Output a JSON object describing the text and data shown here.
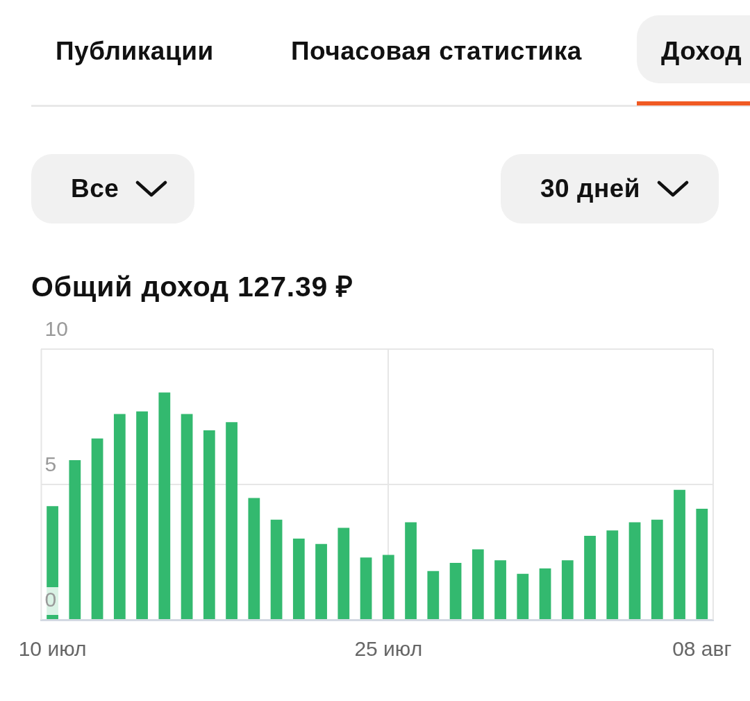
{
  "chart_data": {
    "type": "bar",
    "title": "Общий доход 127.39 ₽",
    "annotations": [
      "Публикации",
      "Почасовая статистика",
      "Доход",
      "Все",
      "30 дней"
    ],
    "categories": [
      "10 июл",
      null,
      null,
      null,
      null,
      null,
      null,
      null,
      null,
      null,
      null,
      null,
      null,
      null,
      null,
      "25 июл",
      null,
      null,
      null,
      null,
      null,
      null,
      null,
      null,
      null,
      null,
      null,
      null,
      null,
      "08 авг"
    ],
    "values": [
      4.2,
      5.9,
      6.7,
      7.6,
      7.7,
      8.4,
      7.6,
      7.0,
      7.3,
      4.5,
      3.7,
      3.0,
      2.8,
      3.4,
      2.3,
      2.4,
      3.6,
      1.8,
      2.1,
      2.6,
      2.2,
      1.7,
      1.9,
      2.2,
      3.1,
      3.3,
      3.6,
      3.7,
      4.8,
      4.1
    ],
    "color": "#33b96f",
    "ylim": [
      0,
      10
    ],
    "yticks": [
      0,
      5,
      10
    ],
    "grid": true
  }
}
